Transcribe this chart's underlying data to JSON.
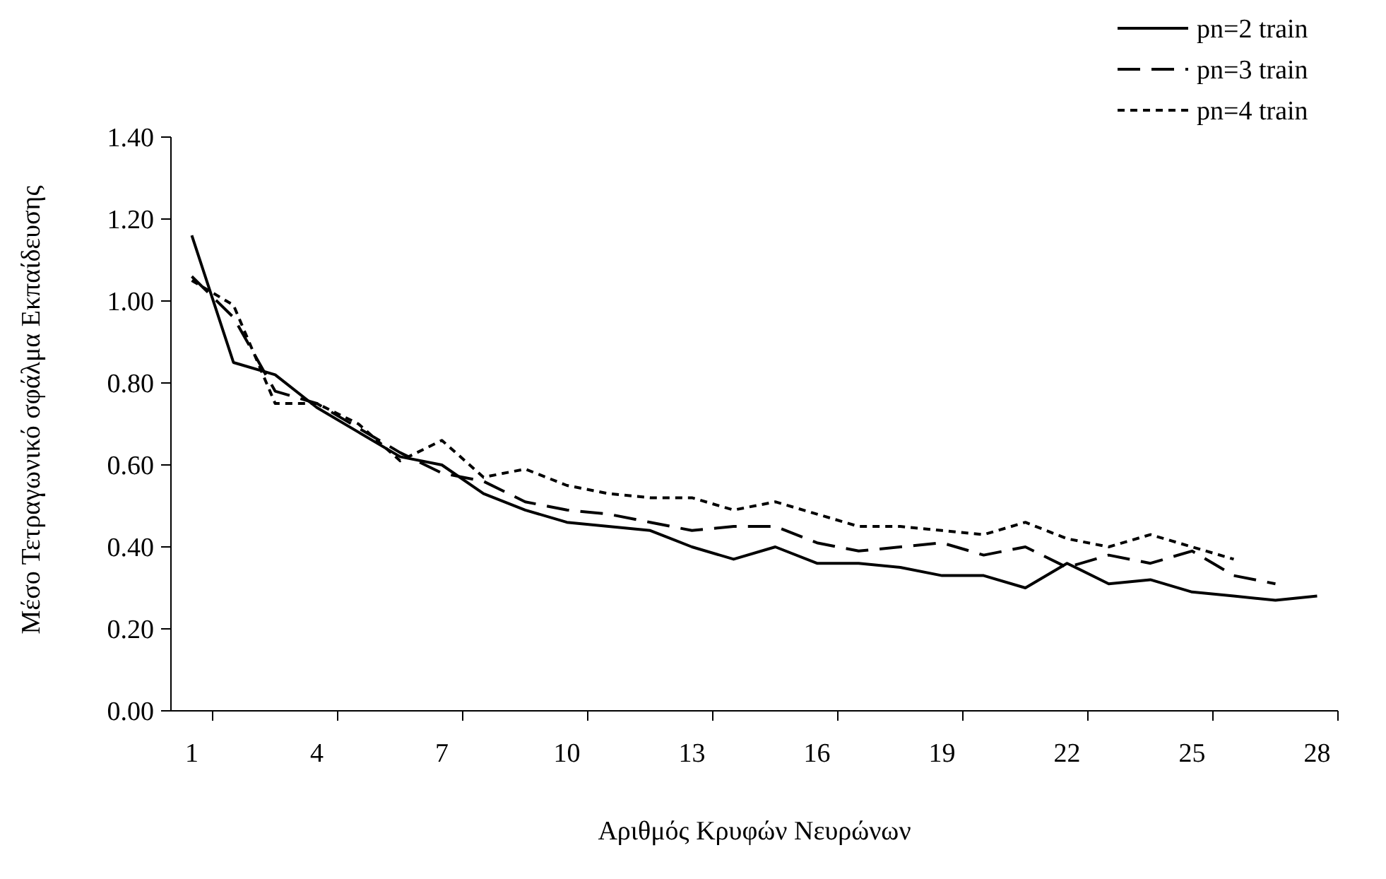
{
  "chart_data": {
    "type": "line",
    "xlabel": "Αριθμός Κρυφών Νευρώνων",
    "ylabel": "Μέσο Τετραγωνικό σφάλμα Εκπαίδευσης",
    "categories": [
      "1",
      null,
      null,
      "4",
      null,
      null,
      "7",
      null,
      null,
      "10",
      null,
      null,
      "13",
      null,
      null,
      "16",
      null,
      null,
      "19",
      null,
      null,
      "22",
      null,
      null,
      "25",
      null,
      null,
      "28"
    ],
    "ylim": [
      0,
      1.4
    ],
    "yticks": [
      {
        "value": 0,
        "label": "0.00"
      },
      {
        "value": 0.2,
        "label": "0.20"
      },
      {
        "value": 0.4,
        "label": "0.40"
      },
      {
        "value": 0.6,
        "label": "0.60"
      },
      {
        "value": 0.8,
        "label": "0.80"
      },
      {
        "value": 1,
        "label": "1.00"
      },
      {
        "value": 1.2,
        "label": "1.20"
      },
      {
        "value": 1.4,
        "label": "1.40"
      }
    ],
    "grid": false,
    "legend": "top right",
    "marker": "none",
    "series": [
      {
        "name": "pn=2 train",
        "color": "#000000",
        "line_style": "solid",
        "values": [
          1.16,
          0.85,
          0.82,
          0.74,
          0.68,
          0.62,
          0.6,
          0.53,
          0.49,
          0.46,
          0.45,
          0.44,
          0.4,
          0.37,
          0.4,
          0.36,
          0.36,
          0.35,
          0.33,
          0.33,
          0.3,
          0.36,
          0.31,
          0.32,
          0.29,
          0.28,
          0.27,
          0.28
        ]
      },
      {
        "name": "pn=3 train",
        "color": "#000000",
        "line_style": "dashed",
        "values": [
          1.06,
          0.96,
          0.78,
          0.75,
          0.69,
          0.63,
          0.58,
          0.56,
          0.51,
          0.49,
          0.48,
          0.46,
          0.44,
          0.45,
          0.45,
          0.41,
          0.39,
          0.4,
          0.41,
          0.38,
          0.4,
          0.35,
          0.38,
          0.36,
          0.39,
          0.33,
          0.31,
          null
        ]
      },
      {
        "name": "pn=4 train",
        "color": "#000000",
        "line_style": "dotted",
        "values": [
          1.05,
          0.99,
          0.75,
          0.75,
          0.7,
          0.61,
          0.66,
          0.57,
          0.59,
          0.55,
          0.53,
          0.52,
          0.52,
          0.49,
          0.51,
          0.48,
          0.45,
          0.45,
          0.44,
          0.43,
          0.46,
          0.42,
          0.4,
          0.43,
          0.4,
          0.37,
          null,
          null
        ]
      }
    ]
  }
}
